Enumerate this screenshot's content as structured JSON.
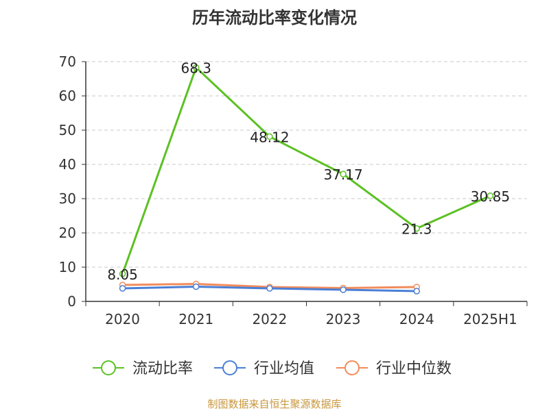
{
  "chart_data": {
    "type": "line",
    "title": "历年流动比率变化情况",
    "categories": [
      "2020",
      "2021",
      "2022",
      "2023",
      "2024",
      "2025H1"
    ],
    "ylim": [
      0,
      70
    ],
    "yticks": [
      0,
      10,
      20,
      30,
      40,
      50,
      60,
      70
    ],
    "grid": true,
    "legend_position": "bottom",
    "series": [
      {
        "name": "流动比率",
        "color": "#5bc122",
        "values": [
          8.05,
          68.3,
          48.12,
          37.17,
          21.3,
          30.85
        ],
        "labels": [
          "8.05",
          "68.3",
          "48.12",
          "37.17",
          "21.3",
          "30.85"
        ]
      },
      {
        "name": "行业均值",
        "color": "#4a7fd6",
        "values": [
          3.8,
          4.3,
          3.8,
          3.4,
          3.0,
          null
        ]
      },
      {
        "name": "行业中位数",
        "color": "#f28c5b",
        "values": [
          4.8,
          5.1,
          4.2,
          3.9,
          4.2,
          null
        ]
      }
    ]
  },
  "footer": {
    "source": "制图数据来自恒生聚源数据库"
  }
}
